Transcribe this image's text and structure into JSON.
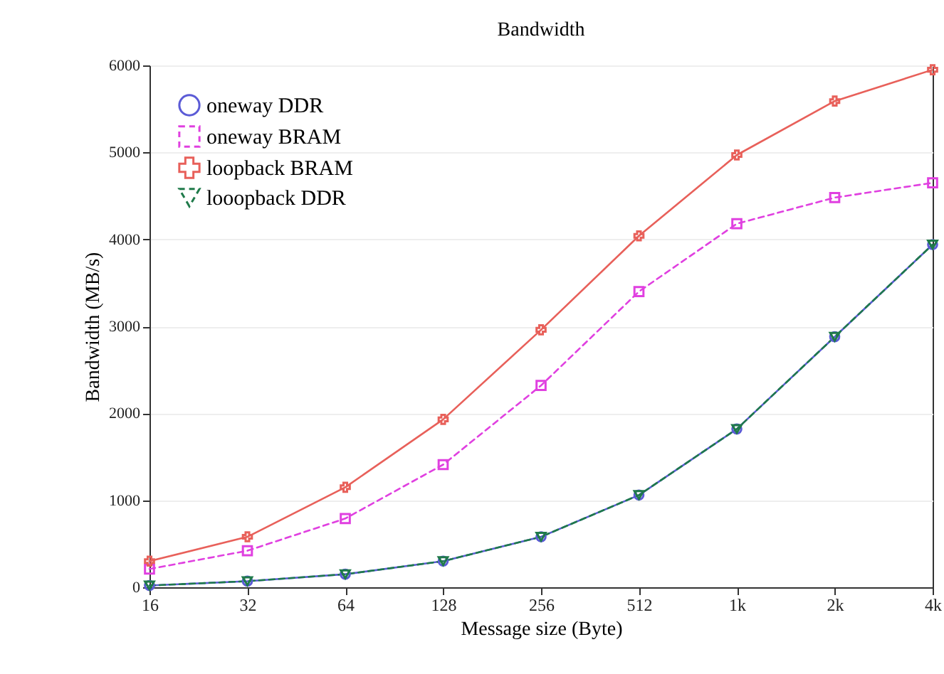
{
  "chart_data": {
    "type": "line",
    "title": "Bandwidth",
    "xlabel": "Message size (Byte)",
    "ylabel": "Bandwidth (MB/s)",
    "categories": [
      "16",
      "32",
      "64",
      "128",
      "256",
      "512",
      "1k",
      "2k",
      "4k"
    ],
    "ylim": [
      0,
      6000
    ],
    "yticks": [
      0,
      1000,
      2000,
      3000,
      4000,
      5000,
      6000
    ],
    "grid": "y",
    "legend": "top left",
    "series": [
      {
        "name": "oneway DDR",
        "color": "#5b5bd6",
        "marker": "circle",
        "line_style": "solid",
        "values": [
          20,
          70,
          150,
          300,
          580,
          1060,
          1820,
          2880,
          3940
        ]
      },
      {
        "name": "oneway BRAM",
        "color": "#e040e0",
        "marker": "square",
        "line_style": "dashed",
        "values": [
          210,
          420,
          790,
          1410,
          2320,
          3400,
          4180,
          4480,
          4650
        ]
      },
      {
        "name": "loopback BRAM",
        "color": "#e8605a",
        "marker": "cross",
        "line_style": "solid",
        "values": [
          300,
          580,
          1150,
          1930,
          2960,
          4040,
          4970,
          5590,
          5950
        ]
      },
      {
        "name": "looopback DDR",
        "color": "#1f7a4a",
        "marker": "triangle",
        "line_style": "dashed",
        "values": [
          20,
          70,
          150,
          300,
          580,
          1060,
          1820,
          2880,
          3940
        ]
      }
    ]
  }
}
